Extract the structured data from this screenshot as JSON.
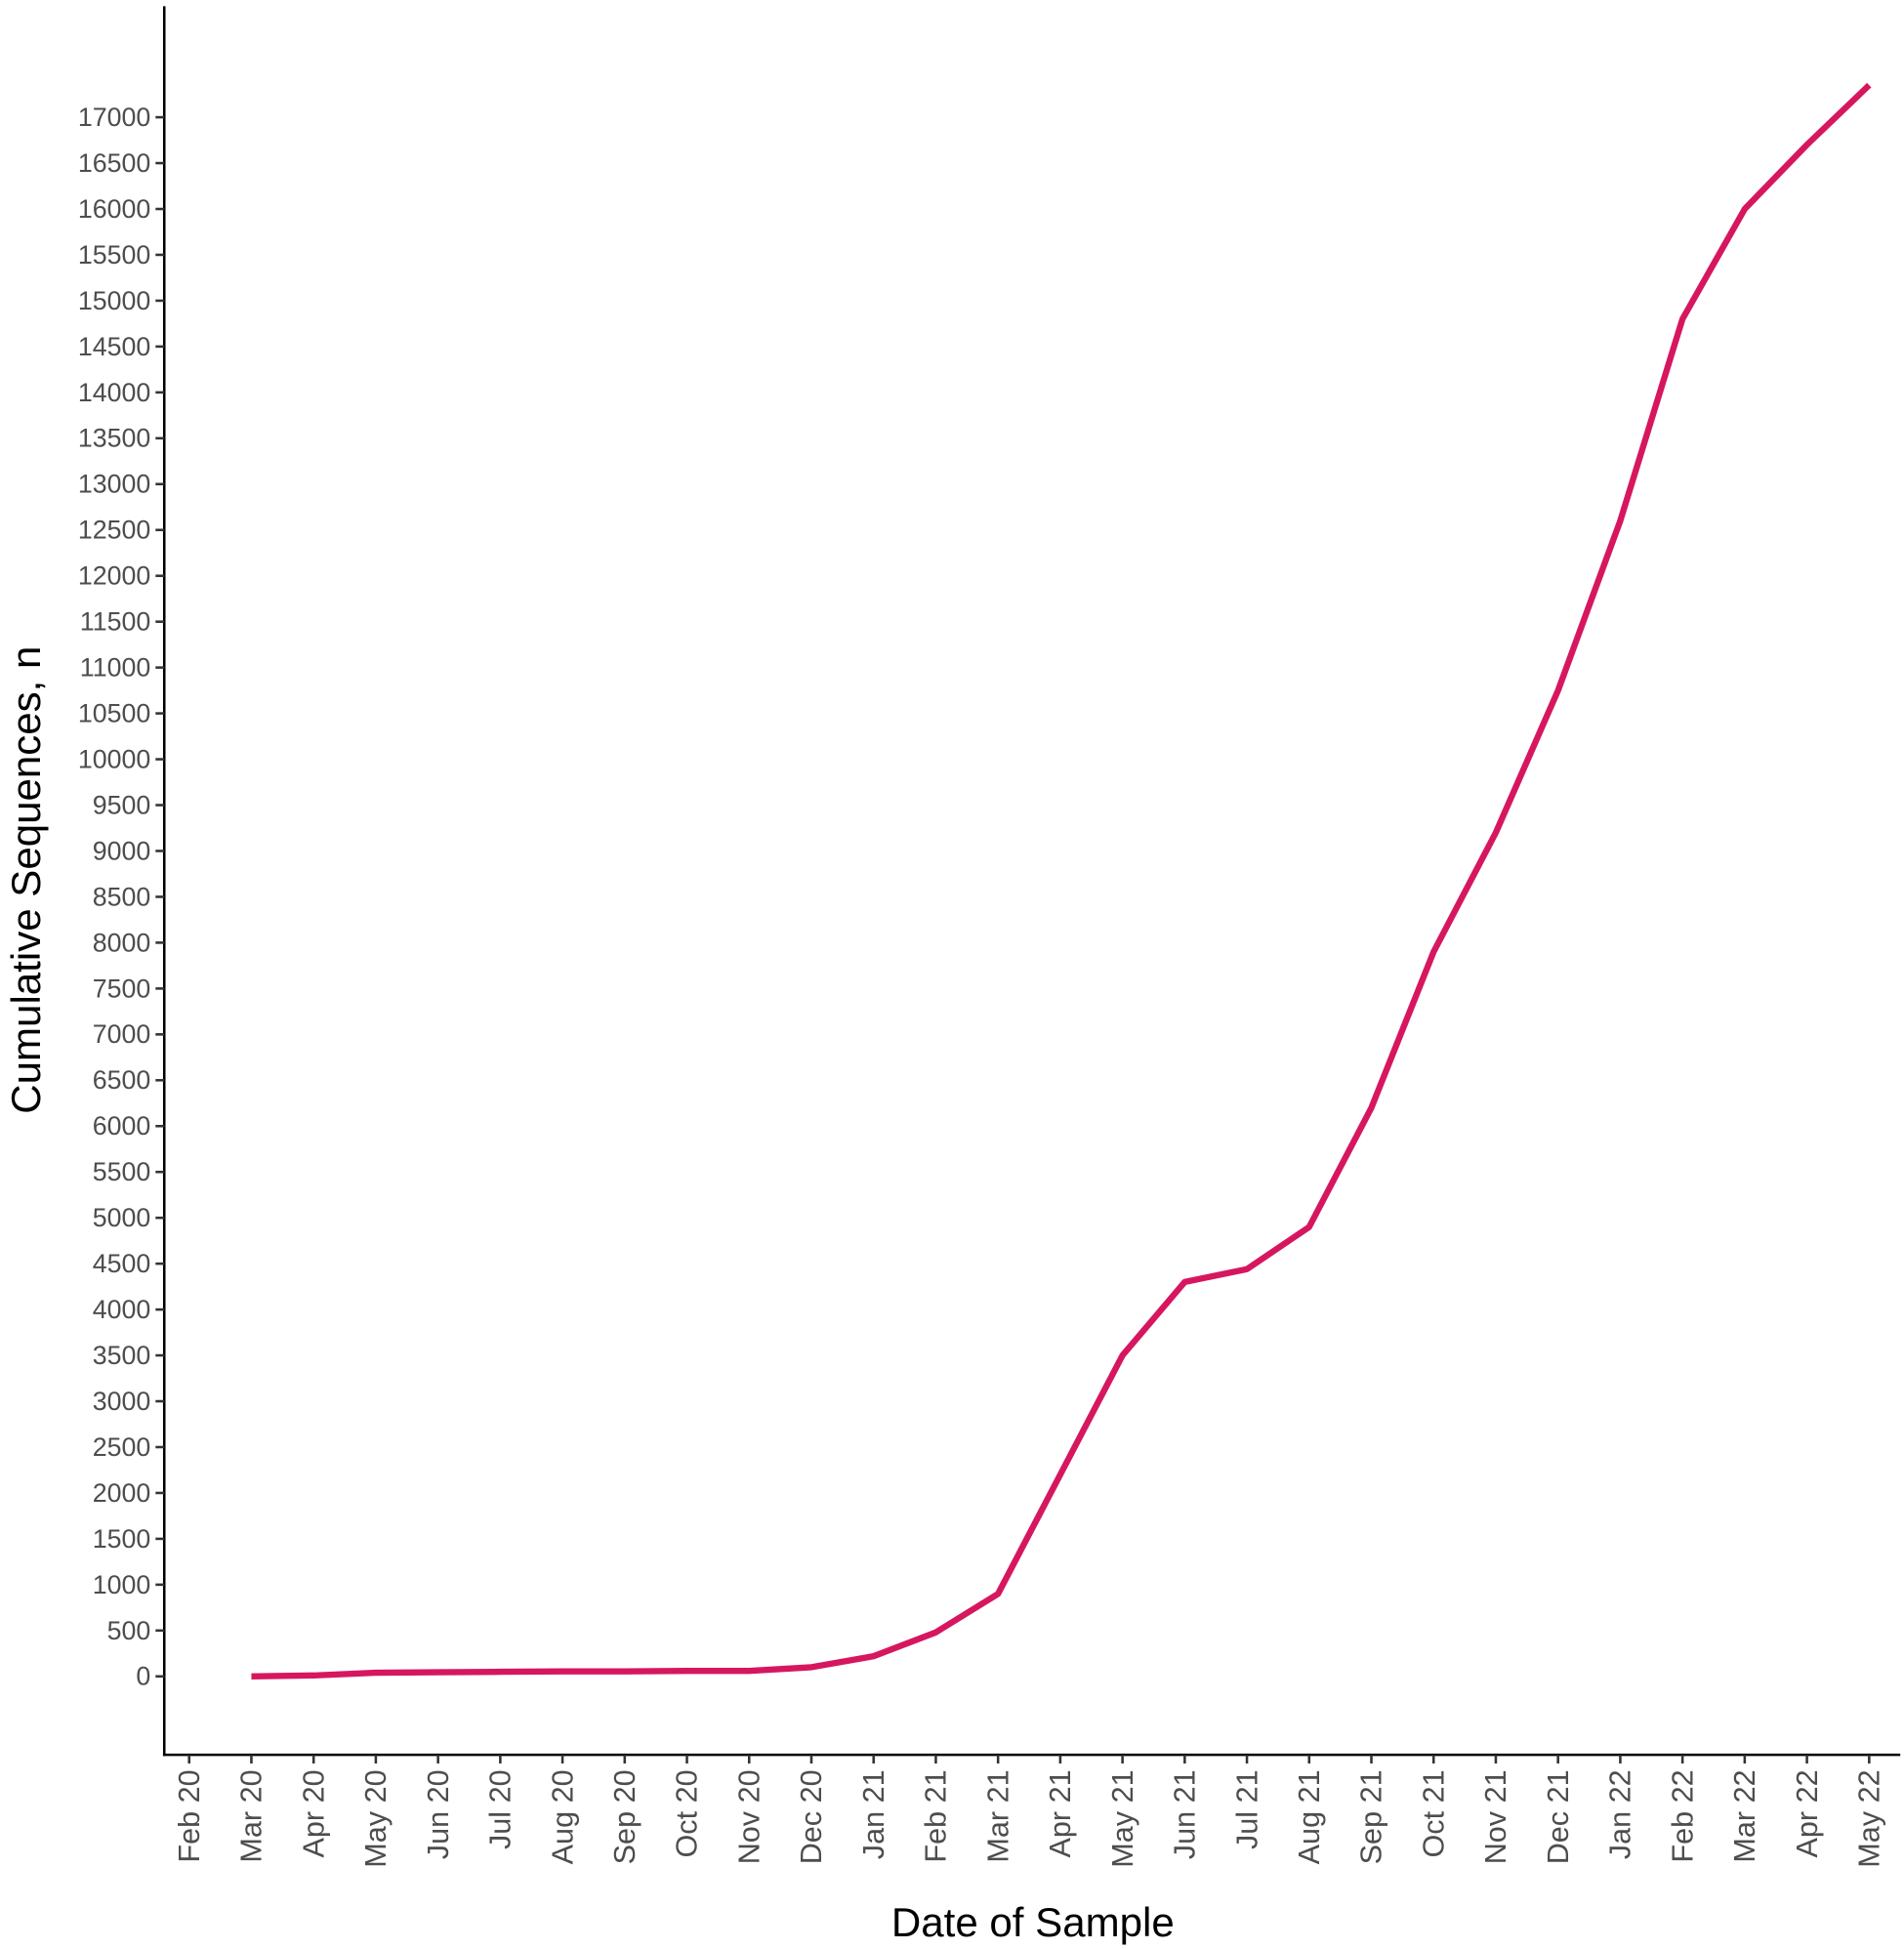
{
  "chart_data": {
    "type": "line",
    "x_label": "Date of Sample",
    "y_label": "Cumulative Sequences, n",
    "x": [
      "Feb 20",
      "Mar 20",
      "Apr 20",
      "May 20",
      "Jun 20",
      "Jul 20",
      "Aug 20",
      "Sep 20",
      "Oct 20",
      "Nov 20",
      "Dec 20",
      "Jan 21",
      "Feb 21",
      "Mar 21",
      "Apr 21",
      "May 21",
      "Jun 21",
      "Jul 21",
      "Aug 21",
      "Sep 21",
      "Oct 21",
      "Nov 21",
      "Dec 21",
      "Jan 22",
      "Feb 22",
      "Mar 22",
      "Apr 22",
      "May 22"
    ],
    "series": [
      {
        "name": "Cumulative Sequences",
        "color": "#d6175f",
        "values": [
          null,
          0,
          10,
          40,
          45,
          50,
          55,
          55,
          60,
          60,
          100,
          220,
          480,
          900,
          2200,
          3500,
          4300,
          4440,
          4900,
          6200,
          7900,
          9200,
          10750,
          12600,
          14800,
          16000,
          16700,
          17350
        ]
      }
    ],
    "ylim": [
      -855,
      18210
    ],
    "yticks": [
      0,
      500,
      1000,
      1500,
      2000,
      2500,
      3000,
      3500,
      4000,
      4500,
      5000,
      5500,
      6000,
      6500,
      7000,
      7500,
      8000,
      8500,
      9000,
      9500,
      10000,
      10500,
      11000,
      11500,
      12000,
      12500,
      13000,
      13500,
      14000,
      14500,
      15000,
      15500,
      16000,
      16500,
      17000
    ],
    "grid": false
  }
}
